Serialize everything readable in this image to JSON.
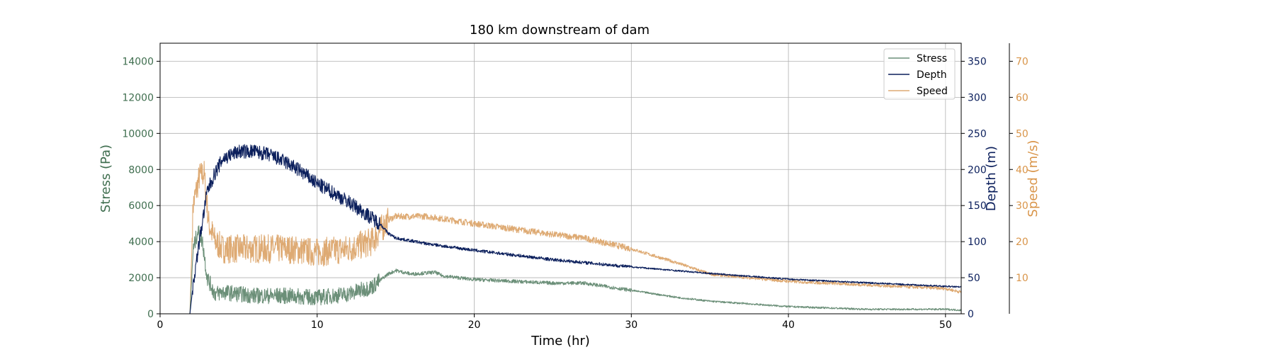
{
  "chart_data": {
    "type": "line",
    "title": "180 km downstream of dam",
    "xlabel": "Time (hr)",
    "xlim": [
      0,
      51
    ],
    "xticks": [
      0,
      10,
      20,
      30,
      40,
      50
    ],
    "grid": true,
    "legend_placement": "top-right",
    "axes": [
      {
        "id": "stress",
        "label": "Stress (Pa)",
        "side": "left",
        "color": "#3f6e4f",
        "ylim": [
          0,
          15000
        ],
        "ticks": [
          0,
          2000,
          4000,
          6000,
          8000,
          10000,
          12000,
          14000
        ]
      },
      {
        "id": "depth",
        "label": "Depth (m)",
        "side": "right",
        "color": "#0b1f5c",
        "ylim": [
          0,
          375
        ],
        "ticks": [
          0,
          50,
          100,
          150,
          200,
          250,
          300,
          350
        ]
      },
      {
        "id": "speed",
        "label": "Speed (m/s)",
        "side": "right-outer",
        "color": "#d9954a",
        "ylim": [
          0,
          75
        ],
        "ticks": [
          10,
          20,
          30,
          40,
          50,
          60,
          70
        ]
      }
    ],
    "series": [
      {
        "name": "Stress",
        "axis": "stress",
        "color": "#6b8f78",
        "noise": 450,
        "noise_cut": 14,
        "x": [
          0,
          1.9,
          2.1,
          2.4,
          2.7,
          3.0,
          3.5,
          4,
          6,
          8,
          10,
          12,
          13.5,
          14.5,
          15,
          16,
          17.5,
          18,
          20,
          25,
          27,
          30,
          33,
          35,
          40,
          45,
          50,
          51
        ],
        "y": [
          0,
          0,
          3500,
          4600,
          4000,
          2000,
          1100,
          1200,
          1000,
          1000,
          900,
          1100,
          1500,
          2200,
          2400,
          2200,
          2300,
          2100,
          1900,
          1700,
          1700,
          1300,
          900,
          700,
          400,
          250,
          250,
          200
        ]
      },
      {
        "name": "Depth",
        "axis": "depth",
        "color": "#0b1f5c",
        "noise": 10,
        "noise_cut": 14,
        "x": [
          0,
          1.9,
          2.1,
          2.5,
          3,
          3.5,
          4,
          5,
          6,
          7,
          8,
          9,
          10,
          11,
          12,
          13,
          14,
          14.5,
          15,
          17,
          20,
          25,
          30,
          35,
          40,
          45,
          51
        ],
        "y": [
          0,
          0,
          40,
          100,
          170,
          195,
          215,
          225,
          225,
          220,
          210,
          197,
          180,
          168,
          155,
          140,
          125,
          112,
          105,
          97,
          88,
          75,
          65,
          56,
          48,
          43,
          37
        ]
      },
      {
        "name": "Speed",
        "axis": "speed",
        "color": "#deaa73",
        "noise": 4,
        "noise_cut": 14.5,
        "x": [
          0,
          1.9,
          2.1,
          2.5,
          2.8,
          3.1,
          3.5,
          4,
          6,
          8,
          10,
          12,
          13.5,
          14.5,
          15,
          17,
          20,
          25,
          27,
          30,
          33,
          35,
          40,
          45,
          50,
          51
        ],
        "y": [
          0,
          0,
          30,
          38,
          39,
          25,
          20,
          18,
          18,
          18,
          17,
          18,
          20,
          26,
          27,
          27,
          25,
          22,
          21,
          18,
          14,
          11,
          9,
          8,
          7,
          6
        ]
      }
    ]
  }
}
